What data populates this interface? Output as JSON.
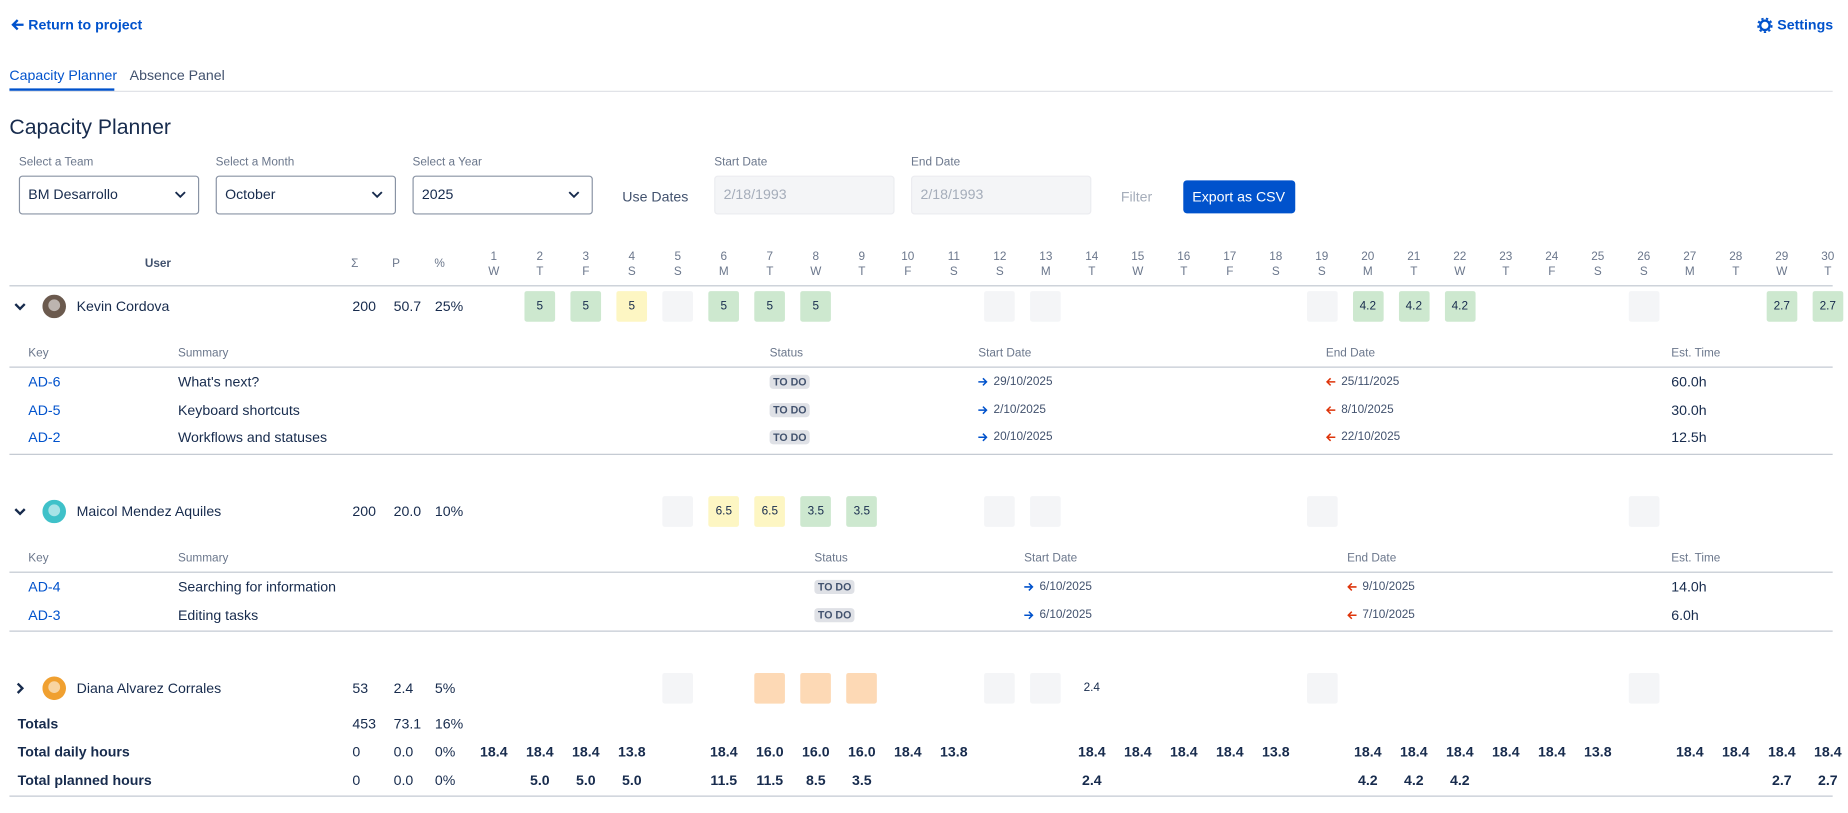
{
  "nav": {
    "back": "Return to project",
    "settings": "Settings"
  },
  "tabs": [
    "Capacity Planner",
    "Absence Panel"
  ],
  "title": "Capacity Planner",
  "filters": {
    "team": {
      "label": "Select a Team",
      "value": "BM Desarrollo"
    },
    "month": {
      "label": "Select a Month",
      "value": "October"
    },
    "year": {
      "label": "Select a Year",
      "value": "2025"
    },
    "use_dates": "Use Dates",
    "start_date": {
      "label": "Start Date",
      "placeholder": "2/18/1993"
    },
    "end_date": {
      "label": "End Date",
      "placeholder": "2/18/1993"
    },
    "filter": "Filter",
    "export": "Export as CSV"
  },
  "table": {
    "columns": {
      "user": "User",
      "sum": "Σ",
      "planned": "P",
      "percent": "%"
    },
    "days": [
      [
        "1",
        "W"
      ],
      [
        "2",
        "T"
      ],
      [
        "3",
        "F"
      ],
      [
        "4",
        "S"
      ],
      [
        "5",
        "S"
      ],
      [
        "6",
        "M"
      ],
      [
        "7",
        "T"
      ],
      [
        "8",
        "W"
      ],
      [
        "9",
        "T"
      ],
      [
        "10",
        "F"
      ],
      [
        "11",
        "S"
      ],
      [
        "12",
        "S"
      ],
      [
        "13",
        "M"
      ],
      [
        "14",
        "T"
      ],
      [
        "15",
        "W"
      ],
      [
        "16",
        "T"
      ],
      [
        "17",
        "F"
      ],
      [
        "18",
        "S"
      ],
      [
        "19",
        "S"
      ],
      [
        "20",
        "M"
      ],
      [
        "21",
        "T"
      ],
      [
        "22",
        "W"
      ],
      [
        "23",
        "T"
      ],
      [
        "24",
        "F"
      ],
      [
        "25",
        "S"
      ],
      [
        "26",
        "S"
      ],
      [
        "27",
        "M"
      ],
      [
        "28",
        "T"
      ],
      [
        "29",
        "W"
      ],
      [
        "30",
        "T"
      ]
    ],
    "users": [
      {
        "name": "Kevin Cordova",
        "sum": "200",
        "planned": "50.7",
        "percent": "25%",
        "expanded": true,
        "avatar_color": "#6b5a4e",
        "cells": [
          null,
          {
            "value": "5",
            "color": "#cde8cf"
          },
          {
            "value": "5",
            "color": "#cde8cf"
          },
          {
            "value": "5",
            "color": "#fdf6c3"
          },
          {
            "color": "#f4f5f7"
          },
          {
            "value": "5",
            "color": "#cde8cf"
          },
          {
            "value": "5",
            "color": "#cde8cf"
          },
          {
            "value": "5",
            "color": "#cde8cf"
          },
          null,
          null,
          null,
          {
            "color": "#f4f5f7"
          },
          {
            "color": "#f4f5f7"
          },
          null,
          null,
          null,
          null,
          null,
          {
            "color": "#f4f5f7"
          },
          {
            "value": "4.2",
            "color": "#cde8cf"
          },
          {
            "value": "4.2",
            "color": "#cde8cf"
          },
          {
            "value": "4.2",
            "color": "#cde8cf"
          },
          null,
          null,
          null,
          {
            "color": "#f4f5f7"
          },
          null,
          null,
          {
            "value": "2.7",
            "color": "#cde8cf"
          },
          {
            "value": "2.7",
            "color": "#cde8cf"
          }
        ],
        "issues": {
          "columns": [
            "Key",
            "Summary",
            "Status",
            "Start Date",
            "End Date",
            "Est. Time"
          ],
          "rows": [
            [
              "AD-6",
              "What's next?",
              "TO DO",
              "29/10/2025",
              "25/11/2025",
              "60.0h"
            ],
            [
              "AD-5",
              "Keyboard shortcuts",
              "TO DO",
              "2/10/2025",
              "8/10/2025",
              "30.0h"
            ],
            [
              "AD-2",
              "Workflows and statuses",
              "TO DO",
              "20/10/2025",
              "22/10/2025",
              "12.5h"
            ]
          ]
        }
      },
      {
        "name": "Maicol Mendez Aquiles",
        "sum": "200",
        "planned": "20.0",
        "percent": "10%",
        "expanded": true,
        "avatar_color": "#3fc1c9",
        "cells": [
          null,
          null,
          null,
          null,
          {
            "color": "#f4f5f7"
          },
          {
            "value": "6.5",
            "color": "#fdf6c3"
          },
          {
            "value": "6.5",
            "color": "#fdf6c3"
          },
          {
            "value": "3.5",
            "color": "#cde8cf"
          },
          {
            "value": "3.5",
            "color": "#cde8cf"
          },
          null,
          null,
          {
            "color": "#f4f5f7"
          },
          {
            "color": "#f4f5f7"
          },
          null,
          null,
          null,
          null,
          null,
          {
            "color": "#f4f5f7"
          },
          null,
          null,
          null,
          null,
          null,
          null,
          {
            "color": "#f4f5f7"
          },
          null,
          null,
          null,
          null
        ],
        "issues": {
          "columns": [
            "Key",
            "Summary",
            "Status",
            "Start Date",
            "End Date",
            "Est. Time"
          ],
          "rows": [
            [
              "AD-4",
              "Searching for information",
              "TO DO",
              "6/10/2025",
              "9/10/2025",
              "14.0h"
            ],
            [
              "AD-3",
              "Editing tasks",
              "TO DO",
              "6/10/2025",
              "7/10/2025",
              "6.0h"
            ]
          ]
        }
      },
      {
        "name": "Diana Alvarez Corrales",
        "sum": "53",
        "planned": "2.4",
        "percent": "5%",
        "expanded": false,
        "avatar_color": "#f0a030",
        "cells": [
          null,
          null,
          null,
          null,
          {
            "color": "#f4f5f7"
          },
          null,
          {
            "color": "#fdd9b5"
          },
          {
            "color": "#fdd9b5"
          },
          {
            "color": "#fdd9b5"
          },
          null,
          null,
          {
            "color": "#f4f5f7"
          },
          {
            "color": "#f4f5f7"
          },
          {
            "value": "2.4"
          },
          null,
          null,
          null,
          null,
          {
            "color": "#f4f5f7"
          },
          null,
          null,
          null,
          null,
          null,
          null,
          {
            "color": "#f4f5f7"
          },
          null,
          null,
          null,
          null
        ]
      }
    ],
    "totals": [
      {
        "label": "Totals",
        "sum": "453",
        "planned": "73.1",
        "percent": "16%"
      },
      {
        "label": "Total daily hours",
        "sum": "0",
        "planned": "0.0",
        "percent": "0%",
        "days": [
          "18.4",
          "18.4",
          "18.4",
          "13.8",
          null,
          "18.4",
          "16.0",
          "16.0",
          "16.0",
          "18.4",
          "13.8",
          null,
          null,
          "18.4",
          "18.4",
          "18.4",
          "18.4",
          "13.8",
          null,
          "18.4",
          "18.4",
          "18.4",
          "18.4",
          "18.4",
          "13.8",
          null,
          "18.4",
          "18.4",
          "18.4",
          "18.4"
        ]
      },
      {
        "label": "Total planned hours",
        "sum": "0",
        "planned": "0.0",
        "percent": "0%",
        "days": [
          null,
          "5.0",
          "5.0",
          "5.0",
          null,
          "11.5",
          "11.5",
          "8.5",
          "3.5",
          null,
          null,
          null,
          null,
          "2.4",
          null,
          null,
          null,
          null,
          null,
          "4.2",
          "4.2",
          "4.2",
          null,
          null,
          null,
          null,
          null,
          null,
          "2.7",
          "2.7"
        ]
      }
    ]
  }
}
